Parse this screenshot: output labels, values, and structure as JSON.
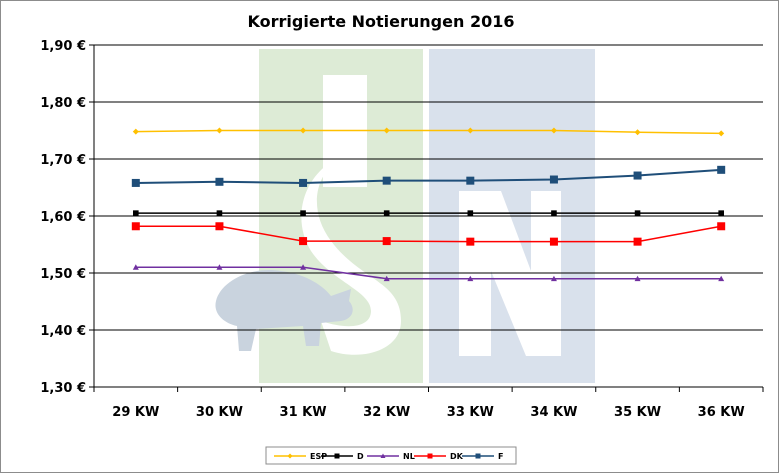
{
  "chart_data": {
    "type": "line",
    "title": "Korrigierte Notierungen 2016",
    "xlabel": "",
    "ylabel": "",
    "categories": [
      "29 KW",
      "30 KW",
      "31 KW",
      "32 KW",
      "33 KW",
      "34 KW",
      "35 KW",
      "36 KW"
    ],
    "ylim": [
      1.3,
      1.9
    ],
    "yticks": [
      "1,30 €",
      "1,40 €",
      "1,50 €",
      "1,60 €",
      "1,70 €",
      "1,80 €",
      "1,90 €"
    ],
    "grid": "horizontal",
    "legend": "bottom",
    "series": [
      {
        "name": "ESP",
        "color": "#FFC000",
        "marker": "diamond",
        "values": [
          1.748,
          1.75,
          1.75,
          1.75,
          1.75,
          1.75,
          1.747,
          1.745
        ]
      },
      {
        "name": "D",
        "color": "#000000",
        "marker": "square",
        "values": [
          1.605,
          1.605,
          1.605,
          1.605,
          1.605,
          1.605,
          1.605,
          1.605
        ]
      },
      {
        "name": "NL",
        "color": "#7030A0",
        "marker": "triangle",
        "values": [
          1.51,
          1.51,
          1.51,
          1.49,
          1.49,
          1.49,
          1.49,
          1.49
        ]
      },
      {
        "name": "DK",
        "color": "#FF0000",
        "marker": "square",
        "values": [
          1.582,
          1.582,
          1.556,
          1.556,
          1.555,
          1.555,
          1.555,
          1.582
        ]
      },
      {
        "name": "F",
        "color": "#1F4E79",
        "marker": "square",
        "values": [
          1.658,
          1.66,
          1.658,
          1.662,
          1.662,
          1.664,
          1.671,
          1.681
        ]
      }
    ]
  },
  "colors": {
    "watermark_green": "#DDEBD6",
    "watermark_blue": "#D9E1EC",
    "watermark_gray": "#C9D3DE"
  }
}
